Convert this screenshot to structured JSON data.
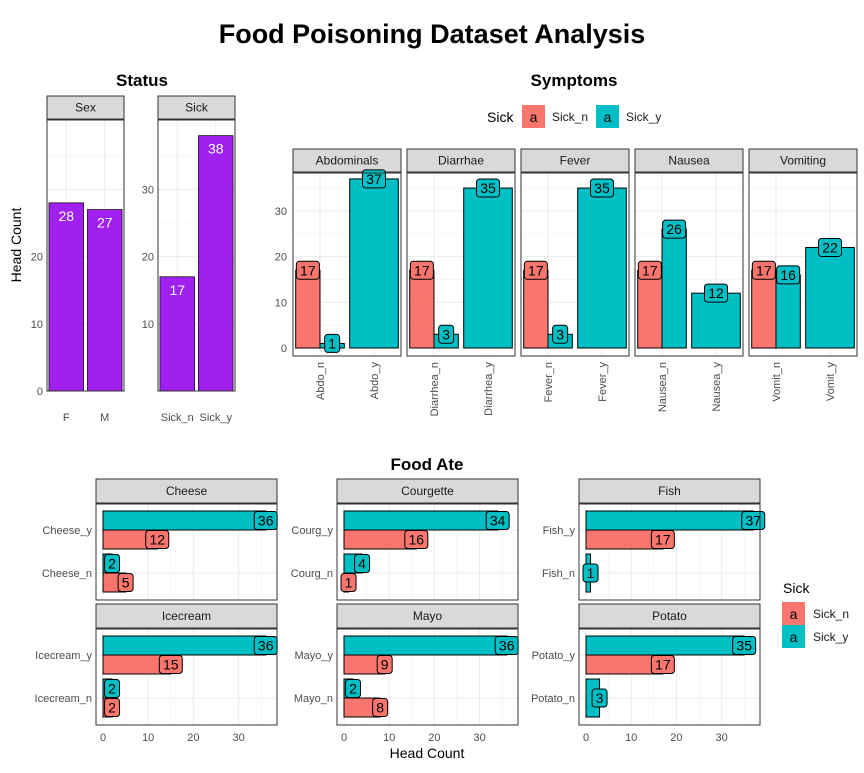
{
  "title": "Food Poisoning Dataset Analysis",
  "colors": {
    "sick_n": "#F8766D",
    "sick_y": "#00BFC4",
    "status": "#A020F0",
    "strip": "#D9D9D9",
    "panel_border": "#333333",
    "grid": "#EBEBEB"
  },
  "status": {
    "title": "Status",
    "ylabel": "Head Count",
    "panels": [
      {
        "strip": "Sex",
        "categories": [
          "F",
          "M"
        ],
        "values": [
          28,
          27
        ]
      },
      {
        "strip": "Sick",
        "categories": [
          "Sick_n",
          "Sick_y"
        ],
        "values": [
          17,
          38
        ]
      }
    ]
  },
  "symptoms": {
    "title": "Symptoms",
    "legend_title": "Sick",
    "legend_items": [
      "Sick_n",
      "Sick_y"
    ],
    "legend_key": "a",
    "panels": [
      {
        "strip": "Abdominals",
        "categories": [
          "Abdo_n",
          "Abdo_y"
        ],
        "sick_n": [
          17,
          0
        ],
        "sick_y": [
          1,
          37
        ]
      },
      {
        "strip": "Diarrhae",
        "categories": [
          "Diarrhea_n",
          "Diarrhea_y"
        ],
        "sick_n": [
          17,
          0
        ],
        "sick_y": [
          3,
          35
        ]
      },
      {
        "strip": "Fever",
        "categories": [
          "Fever_n",
          "Fever_y"
        ],
        "sick_n": [
          17,
          0
        ],
        "sick_y": [
          3,
          35
        ]
      },
      {
        "strip": "Nausea",
        "categories": [
          "Nausea_n",
          "Nausea_y"
        ],
        "sick_n": [
          17,
          0
        ],
        "sick_y": [
          26,
          12
        ]
      },
      {
        "strip": "Vomiting",
        "categories": [
          "Vomit_n",
          "Vomit_y"
        ],
        "sick_n": [
          17,
          0
        ],
        "sick_y": [
          16,
          22
        ]
      }
    ]
  },
  "food": {
    "title": "Food Ate",
    "xlabel": "Head Count",
    "legend_title": "Sick",
    "legend_items": [
      "Sick_n",
      "Sick_y"
    ],
    "legend_key": "a",
    "panels": [
      {
        "strip": "Cheese",
        "categories": [
          "Cheese_y",
          "Cheese_n"
        ],
        "sick_y": [
          36,
          2
        ],
        "sick_n": [
          12,
          5
        ]
      },
      {
        "strip": "Courgette",
        "categories": [
          "Courg_y",
          "Courg_n"
        ],
        "sick_y": [
          34,
          4
        ],
        "sick_n": [
          16,
          1
        ]
      },
      {
        "strip": "Fish",
        "categories": [
          "Fish_y",
          "Fish_n"
        ],
        "sick_y": [
          37,
          1
        ],
        "sick_n": [
          17,
          0
        ]
      },
      {
        "strip": "Icecream",
        "categories": [
          "Icecream_y",
          "Icecream_n"
        ],
        "sick_y": [
          36,
          2
        ],
        "sick_n": [
          15,
          2
        ]
      },
      {
        "strip": "Mayo",
        "categories": [
          "Mayo_y",
          "Mayo_n"
        ],
        "sick_y": [
          36,
          2
        ],
        "sick_n": [
          9,
          8
        ]
      },
      {
        "strip": "Potato",
        "categories": [
          "Potato_y",
          "Potato_n"
        ],
        "sick_y": [
          35,
          3
        ],
        "sick_n": [
          17,
          0
        ]
      }
    ]
  },
  "chart_data": [
    {
      "type": "bar",
      "title": "Status",
      "ylabel": "Head Count",
      "facets": [
        "Sex",
        "Sick"
      ],
      "categories": [
        [
          "F",
          "M"
        ],
        [
          "Sick_n",
          "Sick_y"
        ]
      ],
      "values": [
        [
          28,
          27
        ],
        [
          17,
          38
        ]
      ],
      "y_ticks": [
        0,
        10,
        20,
        30
      ],
      "grid": true
    },
    {
      "type": "bar",
      "title": "Symptoms",
      "facets": [
        "Abdominals",
        "Diarrhae",
        "Fever",
        "Nausea",
        "Vomiting"
      ],
      "series": [
        {
          "name": "Sick_n",
          "values": [
            [
              17,
              0
            ],
            [
              17,
              0
            ],
            [
              17,
              0
            ],
            [
              17,
              0
            ],
            [
              17,
              0
            ]
          ]
        },
        {
          "name": "Sick_y",
          "values": [
            [
              1,
              37
            ],
            [
              3,
              35
            ],
            [
              3,
              35
            ],
            [
              26,
              12
            ],
            [
              16,
              22
            ]
          ]
        }
      ],
      "ylim": [
        0,
        38
      ],
      "y_ticks": [
        0,
        10,
        20,
        30
      ],
      "legend": "top",
      "grid": true
    },
    {
      "type": "bar",
      "orientation": "horizontal",
      "title": "Food Ate",
      "xlabel": "Head Count",
      "facets": [
        "Cheese",
        "Courgette",
        "Fish",
        "Icecream",
        "Mayo",
        "Potato"
      ],
      "series": [
        {
          "name": "Sick_y",
          "values": [
            [
              36,
              2
            ],
            [
              34,
              4
            ],
            [
              37,
              1
            ],
            [
              36,
              2
            ],
            [
              36,
              2
            ],
            [
              35,
              3
            ]
          ]
        },
        {
          "name": "Sick_n",
          "values": [
            [
              12,
              5
            ],
            [
              16,
              1
            ],
            [
              17,
              0
            ],
            [
              15,
              2
            ],
            [
              9,
              8
            ],
            [
              17,
              0
            ]
          ]
        }
      ],
      "x_ticks": [
        0,
        10,
        20,
        30
      ],
      "legend": "right",
      "grid": true
    }
  ]
}
